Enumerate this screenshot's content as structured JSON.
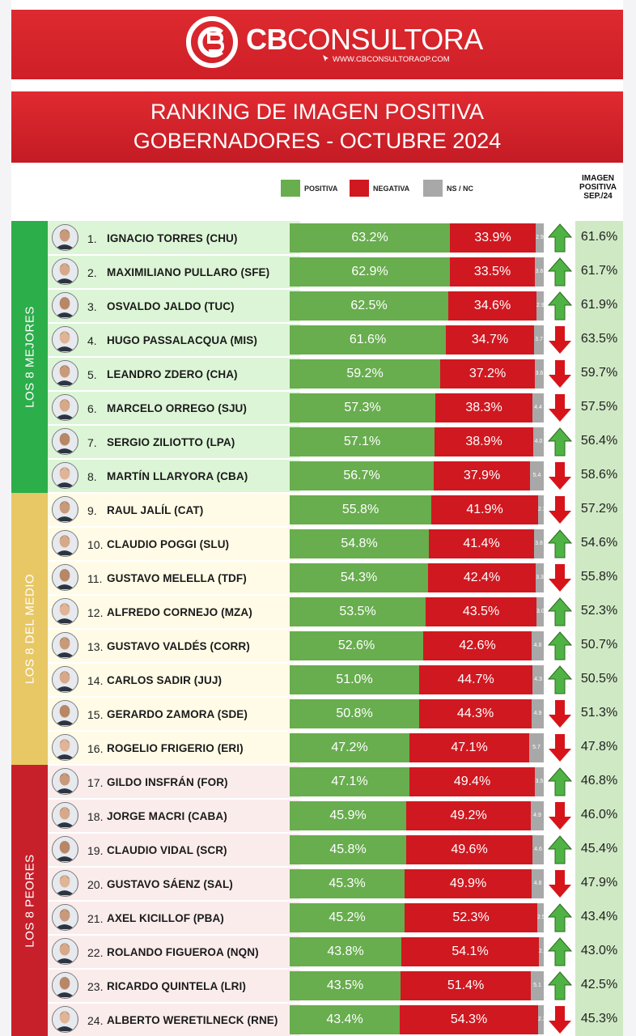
{
  "brand": {
    "name_bold": "CB",
    "name_light": "CONSULTORA",
    "url": "WWW.CBCONSULTORAOP.COM"
  },
  "title": {
    "line1": "RANKING DE IMAGEN POSITIVA",
    "line2": "GOBERNADORES - OCTUBRE 2024"
  },
  "legend": {
    "positive": "POSITIVA",
    "negative": "NEGATIVA",
    "nsnc": "NS / NC",
    "prev_header": "IMAGEN POSITIVA SEP./24"
  },
  "colors": {
    "positive": "#68ad4e",
    "negative": "#d01820",
    "nsnc": "#a8a8a8",
    "brand_red": "#d9232a",
    "group_best": "#2cae4a",
    "group_middle": "#e8c765",
    "group_worst": "#c8202b",
    "arrow_up": "#4fb245",
    "arrow_down": "#d7141a"
  },
  "groups": [
    {
      "label": "LOS 8 MEJORES",
      "color": "#2cae4a",
      "row_bg": "#dcf5d6"
    },
    {
      "label": "LOS 8 DEL MEDIO",
      "color": "#e8c765",
      "row_bg": "#fffbe6"
    },
    {
      "label": "LOS 8 PEORES",
      "color": "#c8202b",
      "row_bg": "#fbecec"
    }
  ],
  "chart_data": {
    "type": "bar",
    "stacked": true,
    "title": "RANKING DE IMAGEN POSITIVA GOBERNADORES - OCTUBRE 2024",
    "series_names": [
      "POSITIVA",
      "NEGATIVA",
      "NS / NC"
    ],
    "rows": [
      {
        "rank": "1.",
        "name": "IGNACIO TORRES (CHU)",
        "pos": 63.2,
        "neg": 33.9,
        "ns": 2.9,
        "ns_label": "2.9",
        "trend": "up",
        "prev": "61.6%"
      },
      {
        "rank": "2.",
        "name": "MAXIMILIANO PULLARO (SFE)",
        "pos": 62.9,
        "neg": 33.5,
        "ns": 3.6,
        "ns_label": "3.6",
        "trend": "up",
        "prev": "61.7%"
      },
      {
        "rank": "3.",
        "name": "OSVALDO JALDO (TUC)",
        "pos": 62.5,
        "neg": 34.6,
        "ns": 2.9,
        "ns_label": "2.9",
        "trend": "up",
        "prev": "61.9%"
      },
      {
        "rank": "4.",
        "name": "HUGO PASSALACQUA (MIS)",
        "pos": 61.6,
        "neg": 34.7,
        "ns": 3.7,
        "ns_label": "3.7",
        "trend": "down",
        "prev": "63.5%"
      },
      {
        "rank": "5.",
        "name": "LEANDRO ZDERO (CHA)",
        "pos": 59.2,
        "neg": 37.2,
        "ns": 3.6,
        "ns_label": "3.6",
        "trend": "down",
        "prev": "59.7%"
      },
      {
        "rank": "6.",
        "name": "MARCELO ORREGO (SJU)",
        "pos": 57.3,
        "neg": 38.3,
        "ns": 4.4,
        "ns_label": "4.4",
        "trend": "down",
        "prev": "57.5%"
      },
      {
        "rank": "7.",
        "name": "SERGIO ZILIOTTO (LPA)",
        "pos": 57.1,
        "neg": 38.9,
        "ns": 4.0,
        "ns_label": "4.0",
        "trend": "up",
        "prev": "56.4%"
      },
      {
        "rank": "8.",
        "name": "MARTÍN LLARYORA (CBA)",
        "pos": 56.7,
        "neg": 37.9,
        "ns": 5.4,
        "ns_label": "5.4",
        "trend": "down",
        "prev": "58.6%"
      },
      {
        "rank": "9.",
        "name": "RAUL JALÍL (CAT)",
        "pos": 55.8,
        "neg": 41.9,
        "ns": 2.3,
        "ns_label": "2.3",
        "trend": "down",
        "prev": "57.2%"
      },
      {
        "rank": "10.",
        "name": "CLAUDIO POGGI (SLU)",
        "pos": 54.8,
        "neg": 41.4,
        "ns": 3.8,
        "ns_label": "3.8",
        "trend": "up",
        "prev": "54.6%"
      },
      {
        "rank": "11.",
        "name": "GUSTAVO MELELLA (TDF)",
        "pos": 54.3,
        "neg": 42.4,
        "ns": 3.3,
        "ns_label": "3.3",
        "trend": "down",
        "prev": "55.8%"
      },
      {
        "rank": "12.",
        "name": "ALFREDO CORNEJO (MZA)",
        "pos": 53.5,
        "neg": 43.5,
        "ns": 3.0,
        "ns_label": "3.0",
        "trend": "up",
        "prev": "52.3%"
      },
      {
        "rank": "13.",
        "name": "GUSTAVO VALDÉS (CORR)",
        "pos": 52.6,
        "neg": 42.6,
        "ns": 4.8,
        "ns_label": "4.8",
        "trend": "up",
        "prev": "50.7%"
      },
      {
        "rank": "14.",
        "name": "CARLOS SADIR (JUJ)",
        "pos": 51.0,
        "neg": 44.7,
        "ns": 4.3,
        "ns_label": "4.3",
        "trend": "up",
        "prev": "50.5%"
      },
      {
        "rank": "15.",
        "name": "GERARDO ZAMORA (SDE)",
        "pos": 50.8,
        "neg": 44.3,
        "ns": 4.9,
        "ns_label": "4.9",
        "trend": "down",
        "prev": "51.3%"
      },
      {
        "rank": "16.",
        "name": "ROGELIO FRIGERIO (ERI)",
        "pos": 47.2,
        "neg": 47.1,
        "ns": 5.7,
        "ns_label": "5.7",
        "trend": "down",
        "prev": "47.8%"
      },
      {
        "rank": "17.",
        "name": "GILDO INSFRÁN (FOR)",
        "pos": 47.1,
        "neg": 49.4,
        "ns": 3.5,
        "ns_label": "3.5",
        "trend": "up",
        "prev": "46.8%"
      },
      {
        "rank": "18.",
        "name": "JORGE MACRI (CABA)",
        "pos": 45.9,
        "neg": 49.2,
        "ns": 4.9,
        "ns_label": "4.9",
        "trend": "down",
        "prev": "46.0%"
      },
      {
        "rank": "19.",
        "name": "CLAUDIO VIDAL (SCR)",
        "pos": 45.8,
        "neg": 49.6,
        "ns": 4.6,
        "ns_label": "4.6",
        "trend": "up",
        "prev": "45.4%"
      },
      {
        "rank": "20.",
        "name": "GUSTAVO SÁENZ (SAL)",
        "pos": 45.3,
        "neg": 49.9,
        "ns": 4.8,
        "ns_label": "4.8",
        "trend": "down",
        "prev": "47.9%"
      },
      {
        "rank": "21.",
        "name": "AXEL KICILLOF (PBA)",
        "pos": 45.2,
        "neg": 52.3,
        "ns": 2.5,
        "ns_label": "2.5",
        "trend": "up",
        "prev": "43.4%"
      },
      {
        "rank": "22.",
        "name": "ROLANDO FIGUEROA (NQN)",
        "pos": 43.8,
        "neg": 54.1,
        "ns": 2.1,
        "ns_label": "2.1",
        "trend": "up",
        "prev": "43.0%"
      },
      {
        "rank": "23.",
        "name": "RICARDO QUINTELA (LRI)",
        "pos": 43.5,
        "neg": 51.4,
        "ns": 5.1,
        "ns_label": "5.1",
        "trend": "up",
        "prev": "42.5%"
      },
      {
        "rank": "24.",
        "name": "ALBERTO WERETILNECK (RNE)",
        "pos": 43.4,
        "neg": 54.3,
        "ns": 2.3,
        "ns_label": "2.3",
        "trend": "down",
        "prev": "45.3%"
      }
    ]
  }
}
